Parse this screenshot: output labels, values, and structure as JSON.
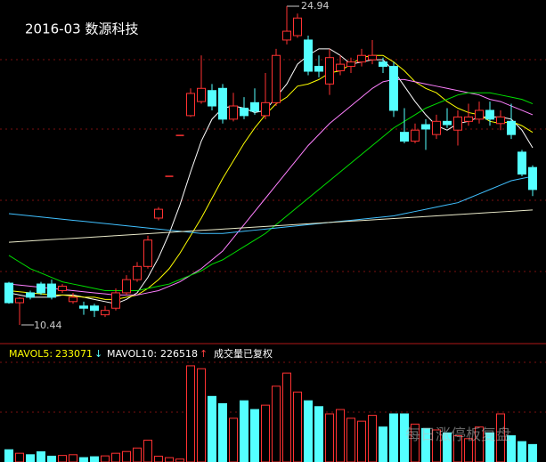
{
  "chart_data": {
    "type": "candlestick",
    "title": "2016-03 数源科技",
    "open": [
      12.34,
      11.45,
      11.9,
      12.3,
      12.3,
      12.0,
      11.5,
      11.3,
      11.3,
      10.9,
      11.2,
      11.9,
      12.5,
      13.1,
      15.3,
      17.2,
      19.06,
      19.96,
      20.6,
      21.1,
      21.2,
      19.8,
      20.3,
      20.55,
      19.96,
      20.55,
      23.4,
      23.6,
      23.4,
      22.2,
      21.4,
      22.0,
      22.2,
      22.4,
      22.5,
      22.4,
      22.2,
      19.2,
      18.8,
      19.55,
      19.1,
      19.7,
      19.3,
      19.7,
      19.8,
      20.2,
      19.6,
      19.7,
      18.3,
      17.6
    ],
    "high": [
      12.4,
      11.7,
      12.0,
      12.4,
      12.5,
      12.3,
      11.9,
      11.5,
      11.4,
      11.3,
      12.1,
      12.7,
      13.3,
      14.5,
      15.8,
      17.2,
      19.06,
      21.2,
      22.7,
      21.4,
      21.4,
      21.0,
      20.8,
      21.2,
      21.9,
      23.0,
      24.94,
      24.6,
      23.6,
      22.7,
      23.0,
      22.7,
      22.6,
      23.0,
      23.4,
      22.6,
      22.4,
      20.3,
      19.6,
      19.8,
      20.0,
      20.3,
      20.2,
      20.5,
      20.6,
      20.6,
      20.2,
      20.5,
      18.4,
      17.7
    ],
    "low": [
      11.4,
      10.44,
      11.6,
      11.8,
      11.6,
      11.9,
      11.4,
      10.9,
      10.8,
      10.8,
      11.1,
      11.8,
      12.4,
      13.0,
      15.2,
      17.2,
      19.06,
      19.9,
      20.5,
      20.2,
      19.6,
      19.7,
      19.8,
      20.0,
      19.8,
      20.4,
      23.2,
      23.5,
      21.8,
      21.7,
      20.9,
      21.8,
      21.9,
      22.2,
      22.3,
      21.9,
      19.9,
      18.7,
      18.7,
      18.4,
      18.9,
      19.4,
      18.6,
      19.5,
      19.6,
      19.5,
      19.3,
      18.9,
      17.2,
      16.3
    ],
    "close": [
      11.45,
      11.65,
      11.7,
      11.9,
      11.7,
      12.2,
      11.7,
      11.2,
      11.1,
      11.1,
      11.9,
      12.5,
      13.1,
      14.3,
      15.7,
      17.2,
      19.06,
      20.97,
      21.2,
      20.4,
      19.8,
      20.4,
      19.96,
      20.16,
      20.55,
      22.7,
      23.8,
      24.4,
      21.98,
      21.98,
      22.6,
      22.3,
      22.4,
      22.7,
      22.7,
      22.2,
      20.2,
      18.8,
      19.3,
      19.35,
      19.7,
      19.55,
      19.9,
      19.9,
      20.2,
      19.8,
      19.9,
      19.1,
      17.3,
      16.6
    ],
    "ylim": [
      9.63,
      25.22
    ],
    "max_label": 24.94,
    "min_label": 10.44,
    "ma_lines": [
      {
        "color": "#ffffff",
        "values": [
          11.9,
          11.8,
          11.7,
          11.7,
          11.7,
          11.8,
          11.8,
          11.7,
          11.6,
          11.5,
          11.4,
          11.6,
          11.9,
          12.6,
          13.5,
          14.6,
          15.9,
          17.4,
          18.8,
          19.8,
          20.3,
          20.4,
          20.3,
          20.1,
          20.2,
          20.8,
          21.4,
          22.3,
          22.7,
          23.0,
          23.0,
          22.7,
          22.3,
          22.4,
          22.5,
          22.5,
          22.0,
          21.3,
          20.6,
          20.0,
          19.5,
          19.3,
          19.6,
          19.7,
          19.9,
          19.9,
          19.9,
          19.8,
          19.3,
          18.5
        ]
      },
      {
        "color": "#ffff00",
        "values": [
          12.0,
          11.95,
          11.9,
          11.85,
          11.8,
          11.8,
          11.75,
          11.7,
          11.7,
          11.6,
          11.6,
          11.7,
          11.8,
          12.1,
          12.5,
          13.0,
          13.7,
          14.5,
          15.3,
          16.2,
          17.1,
          17.9,
          18.7,
          19.4,
          20.0,
          20.5,
          20.8,
          21.3,
          21.4,
          21.6,
          21.9,
          22.0,
          22.3,
          22.6,
          22.7,
          22.7,
          22.4,
          22.0,
          21.5,
          21.2,
          21.0,
          20.6,
          20.3,
          20.1,
          20.0,
          19.7,
          19.6,
          19.7,
          19.5,
          19.2
        ]
      },
      {
        "color": "#ff80ff",
        "values": [
          12.3,
          12.25,
          12.2,
          12.15,
          12.1,
          12.05,
          12.0,
          11.95,
          11.9,
          11.85,
          11.8,
          11.8,
          11.8,
          11.9,
          12.0,
          12.2,
          12.4,
          12.7,
          13.0,
          13.4,
          13.8,
          14.4,
          15.0,
          15.6,
          16.2,
          16.8,
          17.4,
          18.0,
          18.6,
          19.1,
          19.6,
          20.0,
          20.4,
          20.8,
          21.2,
          21.5,
          21.6,
          21.6,
          21.5,
          21.4,
          21.3,
          21.2,
          21.1,
          21.0,
          20.9,
          20.7,
          20.6,
          20.4,
          20.2,
          20.0
        ]
      },
      {
        "color": "#00e000",
        "values": [
          13.6,
          13.3,
          13.0,
          12.8,
          12.6,
          12.4,
          12.3,
          12.2,
          12.1,
          12.0,
          12.0,
          12.0,
          12.0,
          12.1,
          12.2,
          12.3,
          12.5,
          12.7,
          12.9,
          13.2,
          13.4,
          13.7,
          14.0,
          14.3,
          14.6,
          15.0,
          15.4,
          15.8,
          16.2,
          16.6,
          17.0,
          17.4,
          17.8,
          18.2,
          18.6,
          19.0,
          19.4,
          19.7,
          20.0,
          20.3,
          20.5,
          20.7,
          20.9,
          21.0,
          21.0,
          21.0,
          20.9,
          20.8,
          20.7,
          20.5
        ]
      },
      {
        "color": "#40c0ff",
        "values": [
          15.5,
          15.45,
          15.4,
          15.35,
          15.3,
          15.25,
          15.2,
          15.15,
          15.1,
          15.05,
          15.0,
          14.95,
          14.9,
          14.85,
          14.8,
          14.75,
          14.7,
          14.65,
          14.6,
          14.6,
          14.6,
          14.65,
          14.7,
          14.75,
          14.8,
          14.85,
          14.9,
          14.95,
          15.0,
          15.05,
          15.1,
          15.15,
          15.2,
          15.25,
          15.3,
          15.35,
          15.4,
          15.5,
          15.6,
          15.7,
          15.8,
          15.9,
          16.0,
          16.2,
          16.4,
          16.6,
          16.8,
          17.0,
          17.1,
          17.2
        ]
      },
      {
        "color": "#e8e8c8",
        "values": [
          14.2,
          14.23,
          14.26,
          14.29,
          14.32,
          14.35,
          14.38,
          14.41,
          14.44,
          14.47,
          14.5,
          14.53,
          14.56,
          14.59,
          14.62,
          14.65,
          14.68,
          14.71,
          14.74,
          14.77,
          14.8,
          14.83,
          14.86,
          14.89,
          14.92,
          14.95,
          14.98,
          15.01,
          15.04,
          15.07,
          15.1,
          15.13,
          15.16,
          15.19,
          15.22,
          15.25,
          15.28,
          15.31,
          15.34,
          15.37,
          15.4,
          15.43,
          15.46,
          15.49,
          15.52,
          15.55,
          15.58,
          15.61,
          15.64,
          15.67
        ]
      }
    ],
    "volume": {
      "values": [
        84000,
        60000,
        50000,
        70000,
        40000,
        45000,
        50000,
        30000,
        36000,
        42000,
        60000,
        72000,
        96000,
        150000,
        40000,
        30000,
        20000,
        660000,
        640000,
        450000,
        400000,
        300000,
        420000,
        360000,
        390000,
        520000,
        610000,
        480000,
        420000,
        380000,
        330000,
        360000,
        300000,
        280000,
        320000,
        240000,
        330000,
        330000,
        260000,
        230000,
        220000,
        200000,
        180000,
        160000,
        240000,
        200000,
        330000,
        180000,
        140000,
        120000
      ],
      "ylim": [
        0,
        684000
      ]
    },
    "mavol5": {
      "label": "MAVOL5:",
      "value": 233071
    },
    "mavol10": {
      "label": "MAVOL10:",
      "value": 226518
    },
    "note": "成交量已复权",
    "watermark": "每日涨停板复盘"
  }
}
